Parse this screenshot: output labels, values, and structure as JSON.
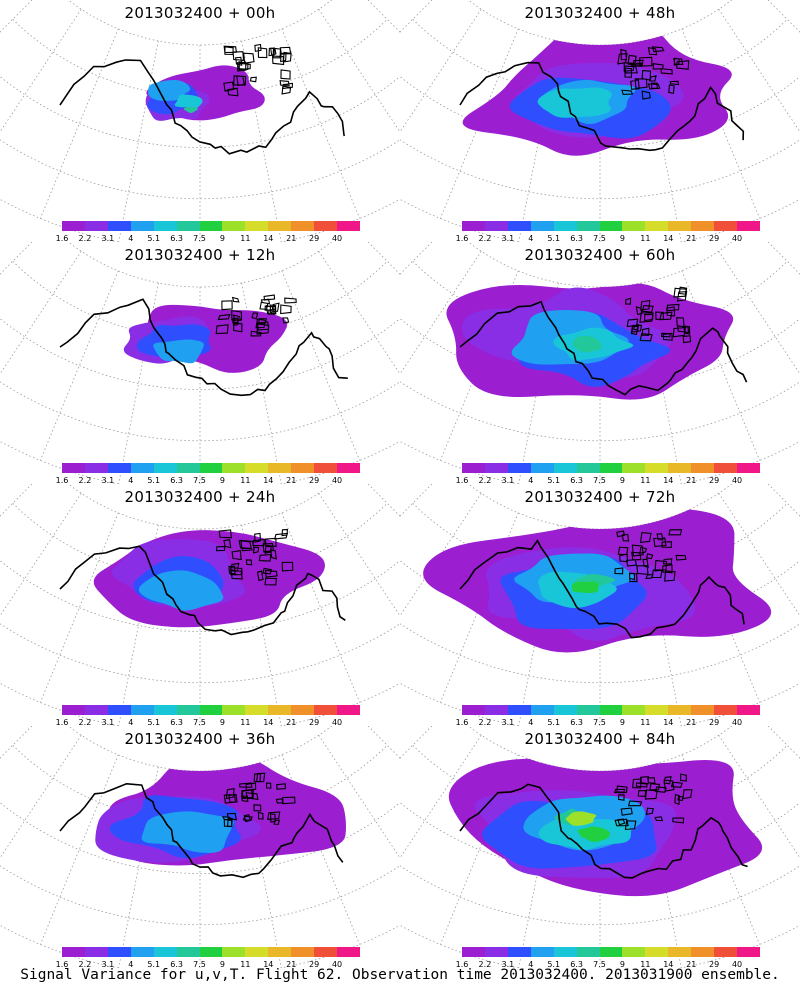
{
  "panels": [
    {
      "title": "2013032400 + 00h",
      "coverage": 0.12,
      "peak_level": 5
    },
    {
      "title": "2013032400 + 48h",
      "coverage": 0.72,
      "peak_level": 4
    },
    {
      "title": "2013032400 + 12h",
      "coverage": 0.22,
      "peak_level": 3
    },
    {
      "title": "2013032400 + 60h",
      "coverage": 0.78,
      "peak_level": 5
    },
    {
      "title": "2013032400 + 24h",
      "coverage": 0.48,
      "peak_level": 3
    },
    {
      "title": "2013032400 + 72h",
      "coverage": 0.82,
      "peak_level": 6
    },
    {
      "title": "2013032400 + 36h",
      "coverage": 0.62,
      "peak_level": 3
    },
    {
      "title": "2013032400 + 84h",
      "coverage": 0.88,
      "peak_level": 7
    }
  ],
  "legend": {
    "labels": [
      "1.6",
      "2.2",
      "3.1",
      "4",
      "5.1",
      "6.3",
      "7.5",
      "9",
      "11",
      "14",
      "21",
      "29",
      "40"
    ],
    "colors": [
      "#9b1ed0",
      "#8a2ee6",
      "#2f4fff",
      "#1fa0f0",
      "#18c6d8",
      "#22c89a",
      "#20d040",
      "#9ce02a",
      "#d6dc2a",
      "#e8b828",
      "#f09028",
      "#f0503a",
      "#f01888"
    ]
  },
  "footer": {
    "caption": "Signal Variance for u,v,T. Flight 62. Observation time 2013032400. 2013031900 ensemble."
  }
}
